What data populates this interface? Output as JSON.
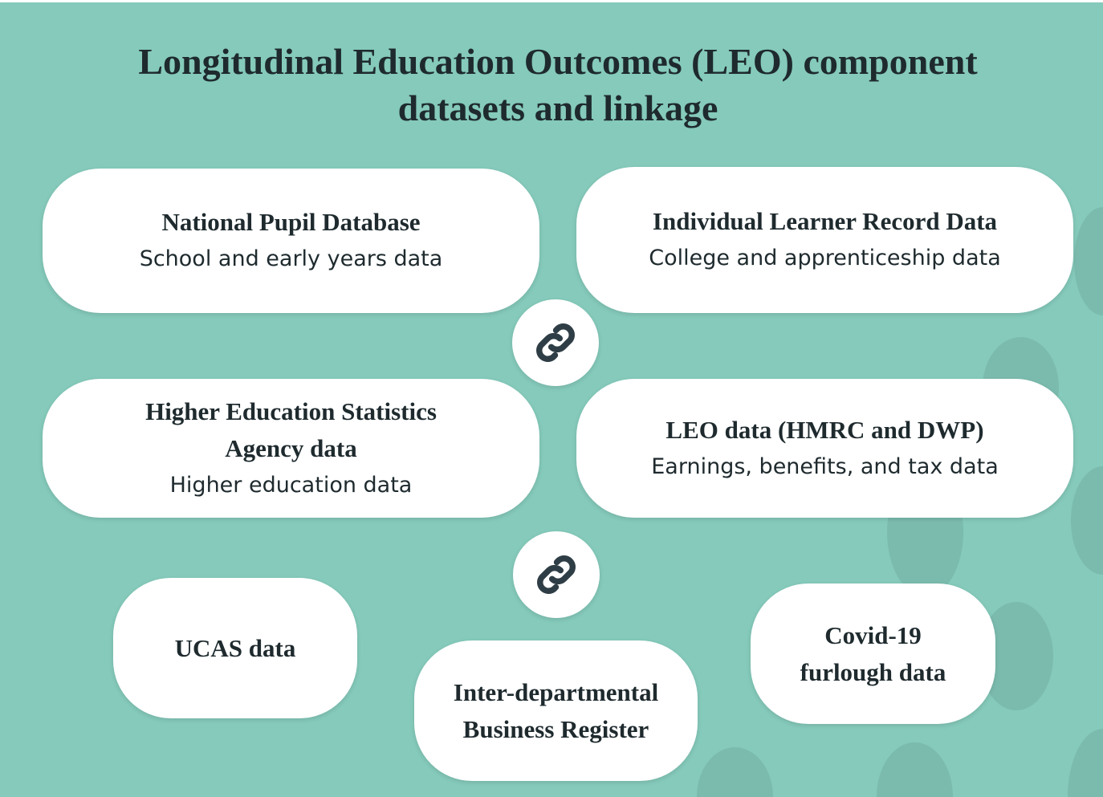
{
  "title_line1": "Longitudinal Education Outcomes (LEO) component",
  "title_line2": "datasets and linkage",
  "colors": {
    "background": "#85cabb",
    "box": "#ffffff",
    "text": "#1e2a2e",
    "icon": "#2f3e46"
  },
  "boxes": {
    "npd": {
      "title": "National Pupil Database",
      "subtitle": "School and early years data"
    },
    "ilr": {
      "title": "Individual Learner Record Data",
      "subtitle": "College and apprenticeship data"
    },
    "hesa": {
      "title1": "Higher Education Statistics",
      "title2": "Agency data",
      "subtitle": "Higher education data"
    },
    "leo": {
      "title": "LEO data (HMRC and DWP)",
      "subtitle": "Earnings, benefits, and tax data"
    },
    "ucas": {
      "title": "UCAS data"
    },
    "idbr": {
      "title1": "Inter-departmental",
      "title2": "Business Register"
    },
    "covid": {
      "title1": "Covid-19",
      "title2": "furlough data"
    }
  },
  "icons": [
    "link-icon",
    "link-icon"
  ]
}
